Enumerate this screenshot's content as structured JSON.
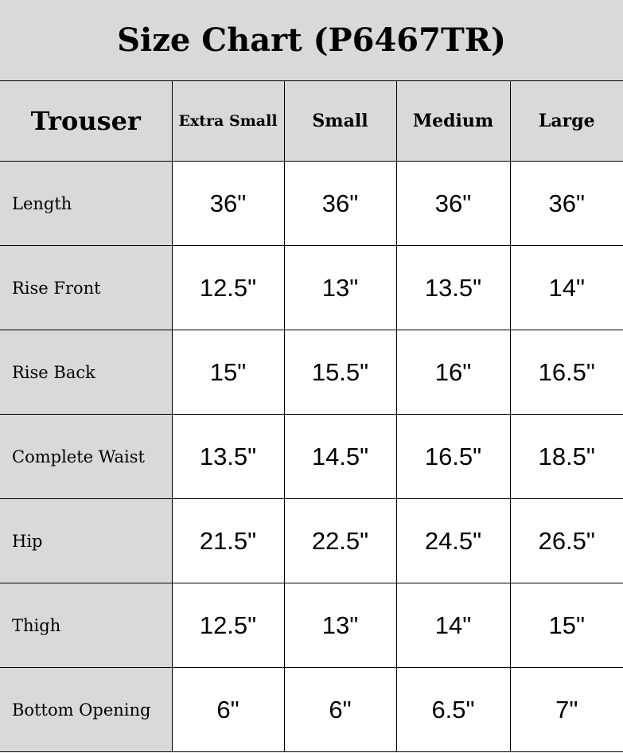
{
  "title": "Size Chart (P6467TR)",
  "header": {
    "first": "Trouser",
    "sizes": [
      "Extra Small",
      "Small",
      "Medium",
      "Large"
    ]
  },
  "rows": [
    {
      "label": "Length",
      "values": [
        "36\"",
        "36\"",
        "36\"",
        "36\""
      ]
    },
    {
      "label": "Rise Front",
      "values": [
        "12.5\"",
        "13\"",
        "13.5\"",
        "14\""
      ]
    },
    {
      "label": "Rise Back",
      "values": [
        "15\"",
        "15.5\"",
        "16\"",
        "16.5\""
      ]
    },
    {
      "label": "Complete Waist",
      "values": [
        "13.5\"",
        "14.5\"",
        "16.5\"",
        "18.5\""
      ]
    },
    {
      "label": "Hip",
      "values": [
        "21.5\"",
        "22.5\"",
        "24.5\"",
        "26.5\""
      ]
    },
    {
      "label": "Thigh",
      "values": [
        "12.5\"",
        "13\"",
        "14\"",
        "15\""
      ]
    },
    {
      "label": "Bottom Opening",
      "values": [
        "6\"",
        "6\"",
        "6.5\"",
        "7\""
      ]
    }
  ],
  "colors": {
    "header_bg": "#d9d9d9",
    "cell_bg": "#ffffff",
    "border": "#000000"
  }
}
